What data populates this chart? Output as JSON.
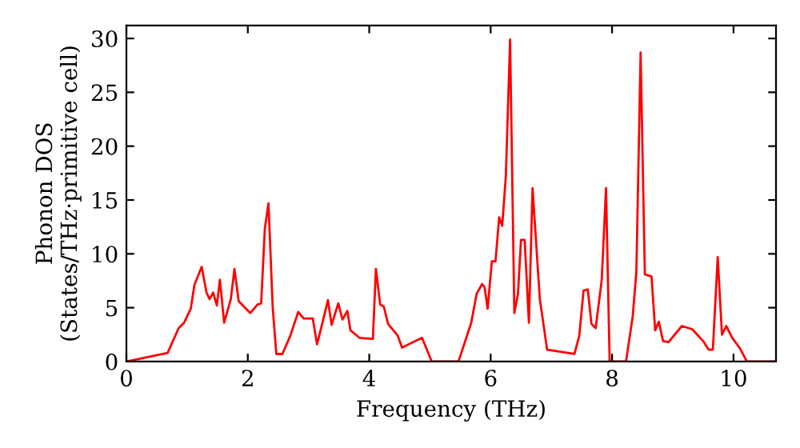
{
  "chart_data": {
    "type": "line",
    "xlabel": "Frequency (THz)",
    "ylabel": "Phonon DOS\n(States/THz·primitive cell)",
    "xlim": [
      0,
      10.7
    ],
    "ylim": [
      0,
      31.2
    ],
    "xticks": [
      0,
      2,
      4,
      6,
      8,
      10
    ],
    "yticks": [
      0,
      5,
      10,
      15,
      20,
      25,
      30
    ],
    "grid": false,
    "legend": false,
    "marker": "none",
    "line_style": "solid",
    "series": [
      {
        "color": "#ff0000",
        "x": [
          0,
          0.68,
          0.86,
          0.95,
          1.06,
          1.12,
          1.24,
          1.32,
          1.37,
          1.43,
          1.49,
          1.54,
          1.61,
          1.72,
          1.78,
          1.85,
          2.04,
          2.16,
          2.22,
          2.28,
          2.34,
          2.41,
          2.47,
          2.57,
          2.7,
          2.83,
          2.92,
          3.07,
          3.14,
          3.23,
          3.32,
          3.38,
          3.49,
          3.56,
          3.64,
          3.69,
          3.84,
          4.06,
          4.11,
          4.18,
          4.24,
          4.31,
          4.47,
          4.54,
          4.87,
          5.03,
          5.47,
          5.68,
          5.77,
          5.86,
          5.9,
          5.95,
          6.02,
          6.08,
          6.14,
          6.19,
          6.25,
          6.32,
          6.39,
          6.45,
          6.5,
          6.56,
          6.63,
          6.69,
          6.81,
          6.93,
          7.38,
          7.46,
          7.53,
          7.6,
          7.66,
          7.73,
          7.83,
          7.9,
          7.96,
          8.23,
          8.34,
          8.4,
          8.47,
          8.54,
          8.65,
          8.71,
          8.77,
          8.84,
          8.93,
          9.15,
          9.32,
          9.5,
          9.59,
          9.66,
          9.74,
          9.81,
          9.88,
          9.98,
          10.11,
          10.22,
          10.7
        ],
        "values": [
          0,
          0.8,
          3.1,
          3.6,
          4.9,
          7.1,
          8.8,
          6.4,
          5.8,
          6.4,
          5.2,
          7.6,
          3.6,
          5.8,
          8.6,
          5.6,
          4.5,
          5.3,
          5.4,
          12.3,
          14.7,
          5.0,
          0.7,
          0.7,
          2.4,
          4.6,
          4.0,
          4.0,
          1.6,
          3.6,
          5.7,
          3.4,
          5.4,
          3.9,
          4.7,
          2.9,
          2.2,
          2.1,
          8.6,
          5.3,
          5.1,
          3.5,
          2.4,
          1.3,
          2.2,
          0,
          0,
          3.6,
          6.3,
          7.2,
          6.9,
          4.9,
          9.3,
          9.3,
          13.4,
          12.6,
          17.2,
          29.9,
          4.5,
          6.3,
          11.3,
          11.3,
          3.6,
          16.1,
          5.8,
          1.1,
          0.7,
          2.4,
          6.6,
          6.7,
          3.5,
          3.1,
          7.6,
          16.1,
          0,
          0,
          4.2,
          8.3,
          28.7,
          8.1,
          7.9,
          2.9,
          3.7,
          1.9,
          1.8,
          3.3,
          3.0,
          1.9,
          1.1,
          1.1,
          9.7,
          2.5,
          3.3,
          2.2,
          1.2,
          0,
          0
        ]
      }
    ]
  }
}
